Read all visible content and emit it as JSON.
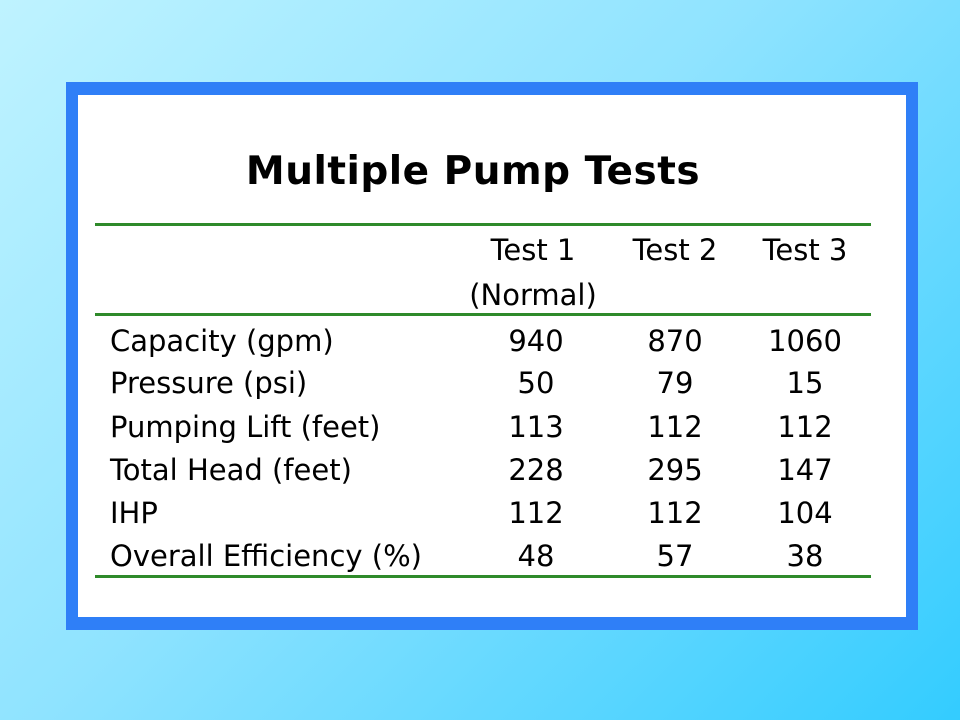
{
  "title": "Multiple Pump Tests",
  "columns": [
    {
      "line1": "Test 1",
      "line2": "(Normal)"
    },
    {
      "line1": "Test 2",
      "line2": ""
    },
    {
      "line1": "Test 3",
      "line2": ""
    }
  ],
  "rows": [
    {
      "label": "Capacity (gpm)",
      "values": [
        "940",
        "870",
        "1060"
      ]
    },
    {
      "label": "Pressure (psi)",
      "values": [
        "50",
        "79",
        "15"
      ]
    },
    {
      "label": "Pumping Lift (feet)",
      "values": [
        "113",
        "112",
        "112"
      ]
    },
    {
      "label": "Total Head (feet)",
      "values": [
        "228",
        "295",
        "147"
      ]
    },
    {
      "label": "IHP",
      "values": [
        "112",
        "112",
        "104"
      ]
    },
    {
      "label": "Overall Efficiency (%)",
      "values": [
        "48",
        "57",
        "38"
      ]
    }
  ],
  "colors": {
    "frame": "#2f7ff7",
    "rule": "#2f8a2a",
    "background_start": "#bff3ff",
    "background_end": "#33ccff"
  }
}
